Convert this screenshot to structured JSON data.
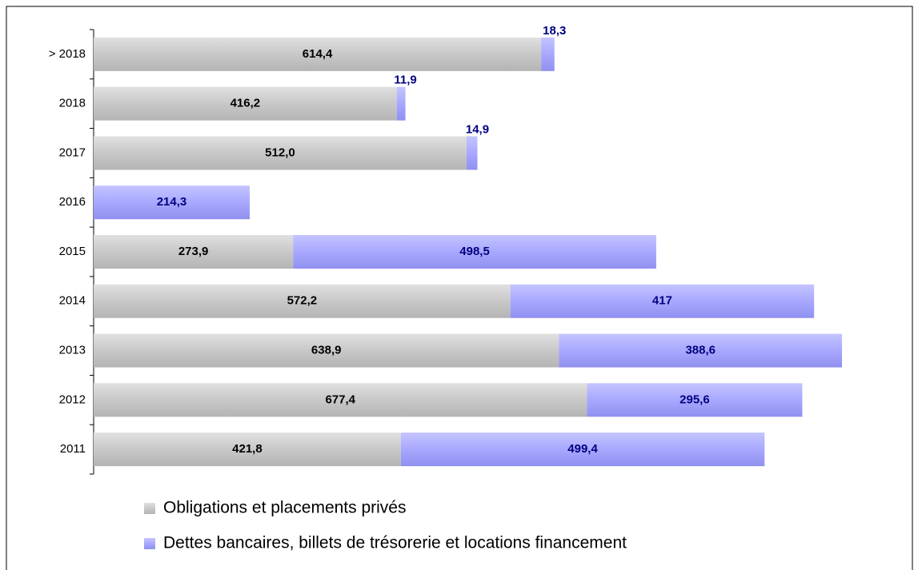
{
  "chart_data": {
    "type": "bar",
    "orientation": "horizontal",
    "stacked": true,
    "categories": [
      "> 2018",
      "2018",
      "2017",
      "2016",
      "2015",
      "2014",
      "2013",
      "2012",
      "2011"
    ],
    "series": [
      {
        "name": "Obligations et placements privés",
        "color": "#c8c8c8",
        "values": [
          614.4,
          416.2,
          512.0,
          null,
          273.9,
          572.2,
          638.9,
          677.4,
          421.8
        ],
        "value_labels": [
          "614,4",
          "416,2",
          "512,0",
          null,
          "273,9",
          "572,2",
          "638,9",
          "677,4",
          "421,8"
        ]
      },
      {
        "name": "Dettes bancaires, billets de trésorerie et locations financement",
        "color": "#a8a8ff",
        "values": [
          18.3,
          11.9,
          14.9,
          214.3,
          498.5,
          417,
          388.6,
          295.6,
          499.4
        ],
        "value_labels": [
          "18,3",
          "11,9",
          "14,9",
          "214,3",
          "498,5",
          "417",
          "388,6",
          "295,6",
          "499,4"
        ]
      }
    ]
  }
}
